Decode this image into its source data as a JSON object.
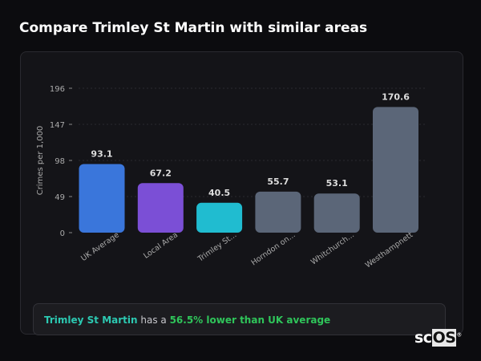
{
  "title": "Compare Trimley St Martin with similar areas",
  "chart_data": {
    "type": "bar",
    "ylabel": "Crimes per 1,000",
    "ylim": [
      0,
      196
    ],
    "yticks": [
      0,
      49,
      98,
      147,
      196
    ],
    "grid": true,
    "categories": [
      "UK Average",
      "Local Area",
      "Trimley St...",
      "Horndon on...",
      "Whitchurch...",
      "Westhampnett"
    ],
    "values": [
      93.1,
      67.2,
      40.5,
      55.7,
      53.1,
      170.6
    ],
    "value_labels": [
      "93.1",
      "67.2",
      "40.5",
      "55.7",
      "53.1",
      "170.6"
    ],
    "colors": [
      "#3a76db",
      "#7b4fd6",
      "#20bcd0",
      "#5b6678",
      "#5b6678",
      "#5b6678"
    ]
  },
  "summary": {
    "area": "Trimley St Martin",
    "connector": " has a ",
    "comparison": "56.5% lower than UK average"
  },
  "logo": {
    "text1": "sc",
    "text2": "OS",
    "mark": "®"
  }
}
